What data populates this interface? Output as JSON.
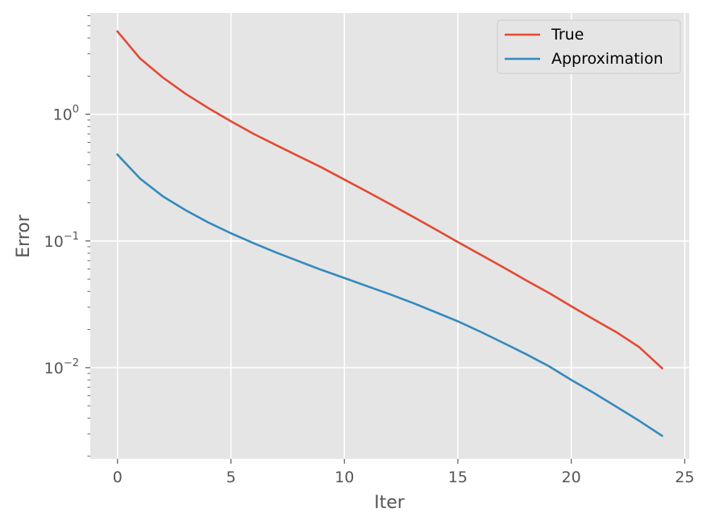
{
  "chart_data": {
    "type": "line",
    "title": "",
    "xlabel": "Iter",
    "ylabel": "Error",
    "xlim": [
      -1.2,
      25.2
    ],
    "ylim_log10": [
      -2.72,
      0.8
    ],
    "yscale": "log",
    "grid": true,
    "legend_position": "top-right",
    "x_ticks": [
      0,
      5,
      10,
      15,
      20,
      25
    ],
    "y_ticks": [
      {
        "exp": 0,
        "base": "10",
        "sup": "0"
      },
      {
        "exp": -1,
        "base": "10",
        "sup": "−1"
      },
      {
        "exp": -2,
        "base": "10",
        "sup": "−2"
      }
    ],
    "x": [
      0,
      1,
      2,
      3,
      4,
      5,
      6,
      7,
      8,
      9,
      10,
      11,
      12,
      13,
      14,
      15,
      16,
      17,
      18,
      19,
      20,
      21,
      22,
      23,
      24
    ],
    "series": [
      {
        "name": "True",
        "color": "#E24A33",
        "values": [
          4.5,
          2.75,
          1.95,
          1.45,
          1.12,
          0.88,
          0.7,
          0.57,
          0.465,
          0.38,
          0.305,
          0.245,
          0.196,
          0.156,
          0.124,
          0.098,
          0.078,
          0.062,
          0.049,
          0.039,
          0.0305,
          0.024,
          0.019,
          0.0145,
          0.0099
        ]
      },
      {
        "name": "Approximation",
        "color": "#348ABD",
        "values": [
          0.48,
          0.31,
          0.225,
          0.175,
          0.14,
          0.115,
          0.096,
          0.081,
          0.069,
          0.059,
          0.051,
          0.044,
          0.038,
          0.0325,
          0.0275,
          0.0232,
          0.0192,
          0.0157,
          0.0128,
          0.0103,
          0.008,
          0.0063,
          0.0049,
          0.0038,
          0.0029
        ]
      }
    ]
  }
}
